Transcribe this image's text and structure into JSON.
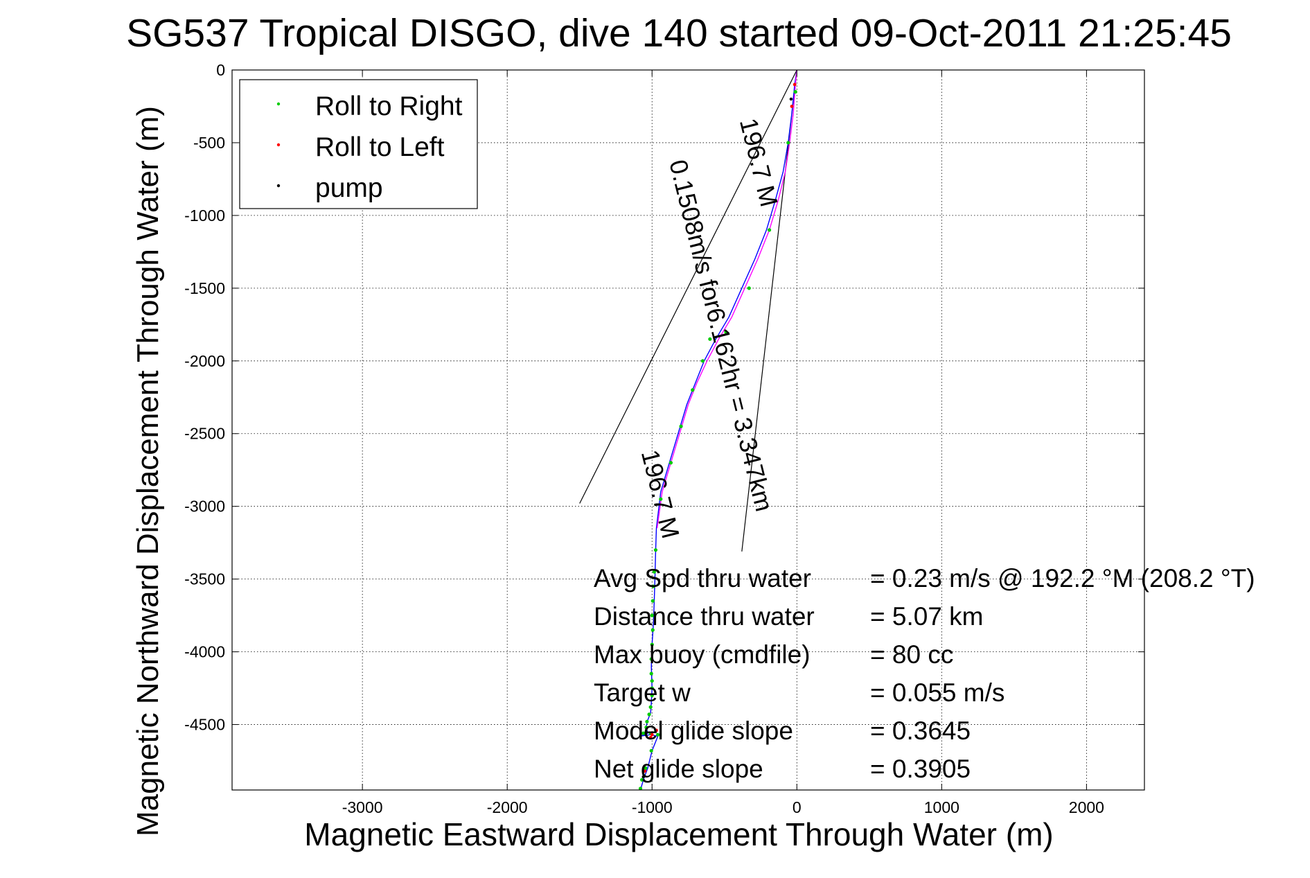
{
  "chart_data": {
    "type": "line",
    "title": "SG537 Tropical DISGO, dive 140 started 09-Oct-2011 21:25:45",
    "xlabel": "Magnetic Eastward Displacement Through Water (m)",
    "ylabel": "Magnetic Northward Displacement Through Water (m)",
    "xlim": [
      -3900,
      2400
    ],
    "ylim": [
      -4950,
      0
    ],
    "xticks": [
      -3000,
      -2000,
      -1000,
      0,
      1000,
      2000
    ],
    "yticks": [
      0,
      -500,
      -1000,
      -1500,
      -2000,
      -2500,
      -3000,
      -3500,
      -4000,
      -4500
    ],
    "grid": true,
    "legend": {
      "position": "top-left",
      "entries": [
        {
          "label": "Roll to Right",
          "color": "#00cc00"
        },
        {
          "label": "Roll to Left",
          "color": "#ff0000"
        },
        {
          "label": "pump",
          "color": "#000000"
        }
      ]
    },
    "series": [
      {
        "role": "track",
        "color": "#0000ff",
        "x": [
          0,
          -15,
          -35,
          -60,
          -95,
          -150,
          -210,
          -290,
          -380,
          -470,
          -560,
          -640,
          -700,
          -760,
          -820,
          -880,
          -940,
          -970,
          -975,
          -980,
          -985,
          -990,
          -1000,
          -1005,
          -1000,
          -1005,
          -1010,
          -1030,
          -1040,
          -1035,
          -1030,
          -1050,
          -1070,
          -1085,
          -1010,
          -960,
          -1000,
          -1030,
          -1060,
          -1080
        ],
        "y": [
          0,
          -100,
          -300,
          -500,
          -700,
          -900,
          -1100,
          -1300,
          -1500,
          -1700,
          -1850,
          -2000,
          -2150,
          -2300,
          -2500,
          -2700,
          -2900,
          -3150,
          -3300,
          -3500,
          -3650,
          -3800,
          -3950,
          -4100,
          -4250,
          -4350,
          -4420,
          -4470,
          -4510,
          -4540,
          -4560,
          -4570,
          -4575,
          -4580,
          -4570,
          -4580,
          -4680,
          -4800,
          -4880,
          -4950
        ]
      },
      {
        "role": "track",
        "color": "#ff00ff",
        "x": [
          0,
          -10,
          -25,
          -50,
          -80,
          -130,
          -190,
          -270,
          -360,
          -450,
          -540,
          -620,
          -690,
          -750,
          -810,
          -870,
          -930,
          -965
        ],
        "y": [
          0,
          -100,
          -300,
          -500,
          -700,
          -900,
          -1100,
          -1300,
          -1500,
          -1700,
          -1850,
          -2000,
          -2150,
          -2300,
          -2500,
          -2700,
          -2900,
          -3150
        ]
      }
    ],
    "roll_right_points": {
      "x": [
        -10,
        -60,
        -190,
        -330,
        -490,
        -600,
        -650,
        -720,
        -800,
        -870,
        -940,
        -975,
        -985,
        -990,
        -995,
        -1000,
        -995,
        -1000,
        -1005,
        -1005,
        -1000,
        -1000,
        -1000,
        -1010,
        -1020,
        -1035,
        -1040,
        -1060,
        -1010,
        -960,
        -1005,
        -1045,
        -1070,
        -1080
      ],
      "y": [
        -150,
        -500,
        -1100,
        -1500,
        -1800,
        -1850,
        -2000,
        -2200,
        -2450,
        -2700,
        -2950,
        -3300,
        -3450,
        -3550,
        -3650,
        -3750,
        -3850,
        -3950,
        -4050,
        -4150,
        -4200,
        -4250,
        -4300,
        -4380,
        -4430,
        -4480,
        -4520,
        -4560,
        -4560,
        -4570,
        -4680,
        -4800,
        -4880,
        -4940
      ]
    },
    "roll_left_points": {
      "x": [
        -15,
        -35,
        -970,
        -1000,
        -1010,
        -1050
      ],
      "y": [
        -100,
        -250,
        -4540,
        -4570,
        -4590,
        -4820
      ]
    },
    "pump_points": {
      "x": [
        -40,
        -1060
      ],
      "y": [
        -200,
        -4860
      ]
    },
    "current_vectors": [
      {
        "x": [
          0,
          -1500
        ],
        "y": [
          0,
          -2980
        ]
      },
      {
        "x": [
          0,
          -380
        ],
        "y": [
          0,
          -3310
        ]
      }
    ],
    "annotations": [
      {
        "text": "0.1508m/s for6.162hr = 3.347km",
        "x": -580,
        "y": -1840,
        "angle": 76
      },
      {
        "text": "196.7 M",
        "x": -320,
        "y": -650,
        "angle": 76
      },
      {
        "text": "196.7 M",
        "x": -1000,
        "y": -2930,
        "angle": 76
      }
    ],
    "stats": [
      {
        "label": "Avg Spd thru water",
        "value": "=  0.23 m/s @ 192.2 °M (208.2 °T)"
      },
      {
        "label": "Distance thru water",
        "value": "=  5.07 km"
      },
      {
        "label": "Max buoy (cmdfile)",
        "value": "= 80 cc"
      },
      {
        "label": "Target w",
        "value": "= 0.055 m/s"
      },
      {
        "label": "Model glide slope",
        "value": "= 0.3645"
      },
      {
        "label": "Net glide slope",
        "value": "= 0.3905"
      }
    ]
  }
}
